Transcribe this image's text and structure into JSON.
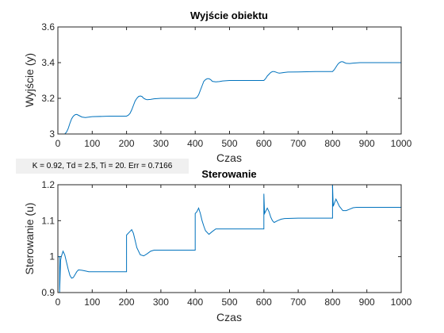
{
  "param_text": "K = 0.92, Td = 2.5, Ti = 20. Err = 0.7166",
  "line_color": "#0072bd",
  "chart_data": [
    {
      "type": "line",
      "title": "Wyjście obiektu",
      "xlabel": "Czas",
      "ylabel": "Wyjście (y)",
      "xlim": [
        0,
        1000
      ],
      "ylim": [
        3,
        3.6
      ],
      "xticks": [
        0,
        100,
        200,
        300,
        400,
        500,
        600,
        700,
        800,
        900,
        1000
      ],
      "yticks": [
        3,
        3.2,
        3.4,
        3.6
      ],
      "xtick_labels": [
        "0",
        "100",
        "200",
        "300",
        "400",
        "500",
        "600",
        "700",
        "800",
        "900",
        "1000"
      ],
      "ytick_labels": [
        "3",
        "3.2",
        "3.4",
        "3.6"
      ],
      "grid": false,
      "series": [
        {
          "x": [
            20,
            25,
            30,
            35,
            40,
            45,
            50,
            55,
            60,
            70,
            80,
            100,
            150,
            200,
            205,
            210,
            215,
            220,
            225,
            230,
            235,
            240,
            245,
            250,
            255,
            260,
            270,
            280,
            300,
            350,
            400,
            405,
            410,
            415,
            420,
            425,
            430,
            435,
            440,
            445,
            450,
            460,
            470,
            480,
            500,
            550,
            600,
            605,
            610,
            615,
            620,
            625,
            630,
            635,
            640,
            645,
            650,
            660,
            670,
            700,
            750,
            800,
            805,
            810,
            815,
            820,
            825,
            830,
            835,
            840,
            850,
            860,
            880,
            900,
            1000
          ],
          "y": [
            3.0,
            3.01,
            3.03,
            3.06,
            3.085,
            3.1,
            3.108,
            3.11,
            3.105,
            3.095,
            3.092,
            3.097,
            3.1,
            3.1,
            3.105,
            3.115,
            3.135,
            3.16,
            3.185,
            3.2,
            3.21,
            3.213,
            3.21,
            3.2,
            3.195,
            3.192,
            3.194,
            3.197,
            3.2,
            3.2,
            3.2,
            3.205,
            3.22,
            3.245,
            3.27,
            3.295,
            3.305,
            3.31,
            3.31,
            3.305,
            3.295,
            3.292,
            3.294,
            3.297,
            3.3,
            3.3,
            3.3,
            3.31,
            3.325,
            3.335,
            3.345,
            3.35,
            3.35,
            3.347,
            3.343,
            3.341,
            3.342,
            3.345,
            3.347,
            3.348,
            3.35,
            3.35,
            3.36,
            3.375,
            3.39,
            3.4,
            3.405,
            3.405,
            3.4,
            3.396,
            3.395,
            3.397,
            3.4,
            3.4,
            3.4
          ]
        }
      ]
    },
    {
      "type": "line",
      "title": "Sterowanie",
      "xlabel": "Czas",
      "ylabel": "Sterowanie (u)",
      "xlim": [
        0,
        1000
      ],
      "ylim": [
        0.9,
        1.2
      ],
      "xticks": [
        0,
        100,
        200,
        300,
        400,
        500,
        600,
        700,
        800,
        900,
        1000
      ],
      "yticks": [
        0.9,
        1,
        1.1,
        1.2
      ],
      "xtick_labels": [
        "0",
        "100",
        "200",
        "300",
        "400",
        "500",
        "600",
        "700",
        "800",
        "900",
        "1000"
      ],
      "ytick_labels": [
        "0.9",
        "1",
        "1.1",
        "1.2"
      ],
      "grid": false,
      "series": [
        {
          "x": [
            0,
            5,
            5,
            8,
            10,
            15,
            20,
            25,
            30,
            35,
            40,
            45,
            50,
            55,
            60,
            70,
            80,
            90,
            100,
            120,
            150,
            200,
            200,
            210,
            215,
            220,
            225,
            230,
            240,
            250,
            260,
            270,
            280,
            300,
            350,
            400,
            400,
            405,
            410,
            415,
            420,
            425,
            430,
            440,
            450,
            460,
            470,
            480,
            500,
            550,
            600,
            600,
            602,
            602,
            610,
            615,
            620,
            625,
            630,
            640,
            650,
            660,
            700,
            750,
            800,
            800,
            802,
            802,
            810,
            815,
            820,
            830,
            840,
            850,
            860,
            870,
            880,
            900,
            1000
          ],
          "y": [
            1.0,
            1.0,
            0.9,
            0.99,
            1.0,
            1.015,
            1.005,
            0.985,
            0.965,
            0.948,
            0.94,
            0.942,
            0.95,
            0.958,
            0.963,
            0.962,
            0.96,
            0.958,
            0.958,
            0.958,
            0.958,
            0.958,
            1.06,
            1.07,
            1.075,
            1.065,
            1.045,
            1.025,
            1.005,
            1.002,
            1.008,
            1.015,
            1.018,
            1.018,
            1.018,
            1.018,
            1.12,
            1.125,
            1.135,
            1.12,
            1.1,
            1.085,
            1.072,
            1.062,
            1.07,
            1.077,
            1.077,
            1.077,
            1.077,
            1.077,
            1.077,
            1.175,
            1.12,
            1.12,
            1.135,
            1.125,
            1.11,
            1.1,
            1.095,
            1.1,
            1.104,
            1.106,
            1.107,
            1.107,
            1.107,
            1.2,
            1.14,
            1.14,
            1.16,
            1.15,
            1.14,
            1.128,
            1.128,
            1.132,
            1.136,
            1.137,
            1.137,
            1.137,
            1.137
          ]
        }
      ]
    }
  ]
}
